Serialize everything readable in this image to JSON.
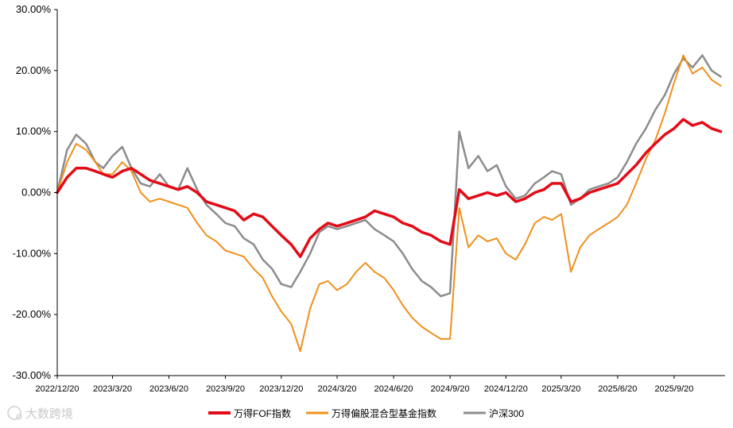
{
  "chart_data": {
    "type": "line",
    "title": "",
    "xlabel": "",
    "ylabel": "",
    "ylim": [
      -30,
      30
    ],
    "yticks": [
      30,
      20,
      10,
      0,
      -10,
      -20,
      -30
    ],
    "ytick_labels": [
      "30.00%",
      "20.00%",
      "10.00%",
      "0.00%",
      "-10.00%",
      "-20.00%",
      "-30.00%"
    ],
    "x_tick_labels": [
      "2022/12/20",
      "2023/3/20",
      "2023/6/20",
      "2023/9/20",
      "2023/12/20",
      "2024/3/20",
      "2024/6/20",
      "2024/9/20",
      "2024/12/20",
      "2025/3/20",
      "2025/6/20",
      "2025/9/20"
    ],
    "grid": false,
    "legend_position": "bottom",
    "x": [
      "2022/12/20",
      "2023/1/5",
      "2023/1/20",
      "2023/2/5",
      "2023/2/20",
      "2023/3/5",
      "2023/3/20",
      "2023/4/5",
      "2023/4/20",
      "2023/5/5",
      "2023/5/20",
      "2023/6/5",
      "2023/6/20",
      "2023/7/5",
      "2023/7/20",
      "2023/8/5",
      "2023/8/20",
      "2023/9/5",
      "2023/9/20",
      "2023/10/5",
      "2023/10/20",
      "2023/11/5",
      "2023/11/20",
      "2023/12/5",
      "2023/12/20",
      "2024/1/5",
      "2024/1/20",
      "2024/2/5",
      "2024/2/20",
      "2024/3/5",
      "2024/3/20",
      "2024/4/5",
      "2024/4/20",
      "2024/5/5",
      "2024/5/20",
      "2024/6/5",
      "2024/6/20",
      "2024/7/5",
      "2024/7/20",
      "2024/8/5",
      "2024/8/20",
      "2024/9/5",
      "2024/9/20",
      "2024/10/5",
      "2024/10/20",
      "2024/11/5",
      "2024/11/20",
      "2024/12/5",
      "2024/12/20",
      "2025/1/5",
      "2025/1/20",
      "2025/2/5",
      "2025/2/20",
      "2025/3/5",
      "2025/3/20",
      "2025/4/5",
      "2025/4/20",
      "2025/5/5",
      "2025/5/20",
      "2025/6/5",
      "2025/6/20",
      "2025/7/5",
      "2025/7/20",
      "2025/8/5",
      "2025/8/20",
      "2025/9/5",
      "2025/9/20",
      "2025/10/5",
      "2025/10/20",
      "2025/11/5",
      "2025/11/20",
      "2025/12/5"
    ],
    "series": [
      {
        "name": "万得FOF指数",
        "color": "#e30b17",
        "values": [
          0.0,
          2.5,
          4.0,
          4.0,
          3.5,
          3.0,
          2.5,
          3.5,
          4.0,
          3.0,
          2.0,
          1.5,
          1.0,
          0.5,
          1.0,
          0.0,
          -1.5,
          -2.0,
          -2.5,
          -3.0,
          -4.5,
          -3.5,
          -4.0,
          -5.5,
          -7.0,
          -8.5,
          -10.5,
          -7.5,
          -6.0,
          -5.0,
          -5.5,
          -5.0,
          -4.5,
          -4.0,
          -3.0,
          -3.5,
          -4.0,
          -5.0,
          -5.5,
          -6.5,
          -7.0,
          -8.0,
          -8.5,
          0.5,
          -1.0,
          -0.5,
          0.0,
          -0.5,
          0.0,
          -1.5,
          -1.0,
          0.0,
          0.5,
          1.5,
          1.5,
          -1.5,
          -1.0,
          0.0,
          0.5,
          1.0,
          1.5,
          3.0,
          4.5,
          6.5,
          8.0,
          9.5,
          10.5,
          12.0,
          11.0,
          11.5,
          10.5,
          10.0
        ]
      },
      {
        "name": "万得偏股混合型基金指数",
        "color": "#f0901c",
        "values": [
          0.0,
          5.0,
          8.0,
          7.0,
          5.0,
          3.0,
          3.0,
          5.0,
          3.5,
          0.0,
          -1.5,
          -1.0,
          -1.5,
          -2.0,
          -2.5,
          -5.0,
          -7.0,
          -8.0,
          -9.5,
          -10.0,
          -10.5,
          -12.5,
          -14.0,
          -17.0,
          -19.5,
          -21.5,
          -26.0,
          -19.0,
          -15.0,
          -14.5,
          -16.0,
          -15.0,
          -13.0,
          -11.5,
          -13.0,
          -14.0,
          -16.0,
          -18.5,
          -20.5,
          -22.0,
          -23.0,
          -24.0,
          -24.0,
          -2.5,
          -9.0,
          -7.0,
          -8.0,
          -7.5,
          -10.0,
          -11.0,
          -8.5,
          -5.0,
          -4.0,
          -4.5,
          -3.5,
          -13.0,
          -9.0,
          -7.0,
          -6.0,
          -5.0,
          -4.0,
          -2.0,
          1.5,
          5.5,
          8.5,
          13.0,
          18.0,
          22.5,
          19.5,
          20.5,
          18.5,
          17.5
        ]
      },
      {
        "name": "沪深300",
        "color": "#8c8c8c",
        "values": [
          0.0,
          7.0,
          9.5,
          8.0,
          5.0,
          4.0,
          6.0,
          7.5,
          4.0,
          1.5,
          1.0,
          3.0,
          1.0,
          0.5,
          4.0,
          0.5,
          -2.0,
          -3.5,
          -5.0,
          -5.5,
          -7.5,
          -8.5,
          -11.0,
          -12.5,
          -15.0,
          -15.5,
          -13.0,
          -10.0,
          -6.5,
          -5.5,
          -6.0,
          -5.5,
          -5.0,
          -4.5,
          -6.0,
          -7.0,
          -8.0,
          -10.0,
          -12.5,
          -14.5,
          -15.5,
          -17.0,
          -16.5,
          10.0,
          4.0,
          6.0,
          3.5,
          4.5,
          1.0,
          -1.0,
          -0.5,
          1.5,
          2.5,
          3.5,
          3.0,
          -2.0,
          -1.0,
          0.5,
          1.0,
          1.5,
          2.5,
          5.0,
          8.0,
          10.5,
          13.5,
          16.0,
          19.5,
          22.0,
          20.5,
          22.5,
          20.0,
          19.0
        ]
      }
    ]
  },
  "watermark": {
    "text": "大数跨境"
  }
}
